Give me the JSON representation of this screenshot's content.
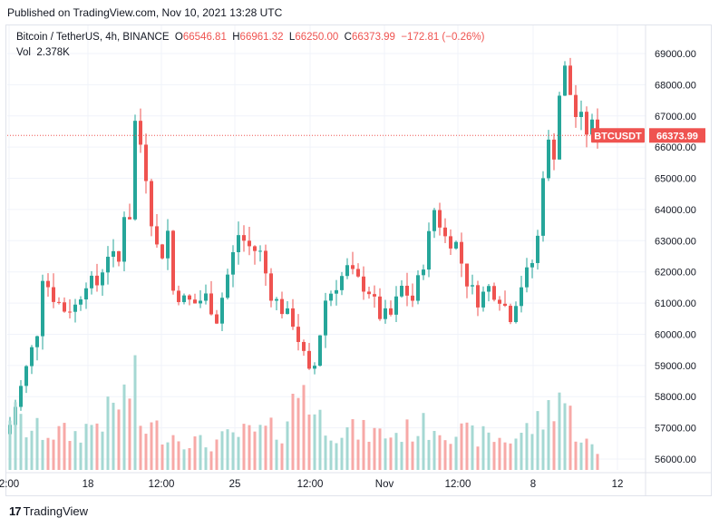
{
  "header": {
    "published": "Published on TradingView.com, Nov 10, 2021 13:28 UTC"
  },
  "legend": {
    "symbol": "Bitcoin / TetherUS, 4h, BINANCE",
    "o_label": "O",
    "o_value": "66546.81",
    "h_label": "H",
    "h_value": "66961.32",
    "l_label": "L",
    "l_value": "66250.00",
    "c_label": "C",
    "c_value": "66373.99",
    "change": "−172.81 (−0.26%)",
    "vol_label": "Vol",
    "vol_value": "2.378K"
  },
  "price_tag": {
    "symbol": "BTCUSDT",
    "price": "66373.99"
  },
  "footer": {
    "brand_glyph": "17",
    "brand_name": "TradingView"
  },
  "colors": {
    "up": "#26a69a",
    "down": "#ef5350",
    "up_volume": "#a5d8d3",
    "down_volume": "#f7a9a7",
    "grid": "#f0f3fa",
    "axis_text": "#131722",
    "price_line": "#ef5350"
  },
  "chart_data": {
    "type": "candlestick",
    "title": "Bitcoin / TetherUS, 4h, BINANCE",
    "interval": "4h",
    "ylim": [
      55700,
      69500
    ],
    "y_ticks": [
      "69000.00",
      "68000.00",
      "67000.00",
      "66000.00",
      "65000.00",
      "64000.00",
      "63000.00",
      "62000.00",
      "61000.00",
      "60000.00",
      "59000.00",
      "58000.00",
      "57000.00",
      "56000.00"
    ],
    "x_ticks": [
      "2:00",
      "18",
      "12:00",
      "25",
      "12:00",
      "Nov",
      "12:00",
      "8",
      "12"
    ],
    "last_price": 66373.99,
    "grid": true,
    "close_path": [
      [
        0,
        57100
      ],
      [
        2,
        58300
      ],
      [
        4,
        59500
      ],
      [
        5,
        60100
      ],
      [
        6,
        61900
      ],
      [
        8,
        61200
      ],
      [
        10,
        60800
      ],
      [
        12,
        60900
      ],
      [
        14,
        61700
      ],
      [
        16,
        61600
      ],
      [
        18,
        62600
      ],
      [
        20,
        62300
      ],
      [
        21,
        63900
      ],
      [
        22,
        63800
      ],
      [
        23,
        66800
      ],
      [
        24,
        66100
      ],
      [
        25,
        65100
      ],
      [
        26,
        63700
      ],
      [
        27,
        62800
      ],
      [
        28,
        62600
      ],
      [
        29,
        63300
      ],
      [
        30,
        61400
      ],
      [
        32,
        61100
      ],
      [
        34,
        61000
      ],
      [
        36,
        61200
      ],
      [
        38,
        60500
      ],
      [
        40,
        61900
      ],
      [
        42,
        63200
      ],
      [
        44,
        62800
      ],
      [
        46,
        62600
      ],
      [
        48,
        61300
      ],
      [
        50,
        60800
      ],
      [
        52,
        60400
      ],
      [
        54,
        59300
      ],
      [
        55,
        58700
      ],
      [
        56,
        59000
      ],
      [
        58,
        61100
      ],
      [
        60,
        61600
      ],
      [
        62,
        62100
      ],
      [
        64,
        61700
      ],
      [
        66,
        61400
      ],
      [
        68,
        60600
      ],
      [
        70,
        60600
      ],
      [
        72,
        61500
      ],
      [
        74,
        61100
      ],
      [
        76,
        62300
      ],
      [
        78,
        64000
      ],
      [
        80,
        63100
      ],
      [
        82,
        62900
      ],
      [
        84,
        61700
      ],
      [
        86,
        61100
      ],
      [
        88,
        61500
      ],
      [
        90,
        61200
      ],
      [
        92,
        60600
      ],
      [
        94,
        61600
      ],
      [
        96,
        62300
      ],
      [
        97,
        63100
      ],
      [
        98,
        65200
      ],
      [
        99,
        66100
      ],
      [
        100,
        65800
      ],
      [
        101,
        67700
      ],
      [
        102,
        68500
      ],
      [
        103,
        67700
      ],
      [
        104,
        67000
      ],
      [
        105,
        66900
      ],
      [
        106,
        66500
      ],
      [
        107,
        66700
      ],
      [
        108,
        66374
      ]
    ],
    "volume_profile": [
      [
        0,
        0.6
      ],
      [
        3,
        0.4
      ],
      [
        12,
        0.35
      ],
      [
        18,
        0.55
      ],
      [
        23,
        0.85
      ],
      [
        24,
        0.45
      ],
      [
        27,
        0.4
      ],
      [
        30,
        0.35
      ],
      [
        36,
        0.25
      ],
      [
        42,
        0.35
      ],
      [
        50,
        0.4
      ],
      [
        54,
        0.9
      ],
      [
        56,
        0.55
      ],
      [
        60,
        0.4
      ],
      [
        70,
        0.35
      ],
      [
        78,
        0.45
      ],
      [
        84,
        0.35
      ],
      [
        92,
        0.3
      ],
      [
        98,
        0.5
      ],
      [
        101,
        0.8
      ],
      [
        104,
        0.4
      ],
      [
        108,
        0.15
      ]
    ]
  }
}
